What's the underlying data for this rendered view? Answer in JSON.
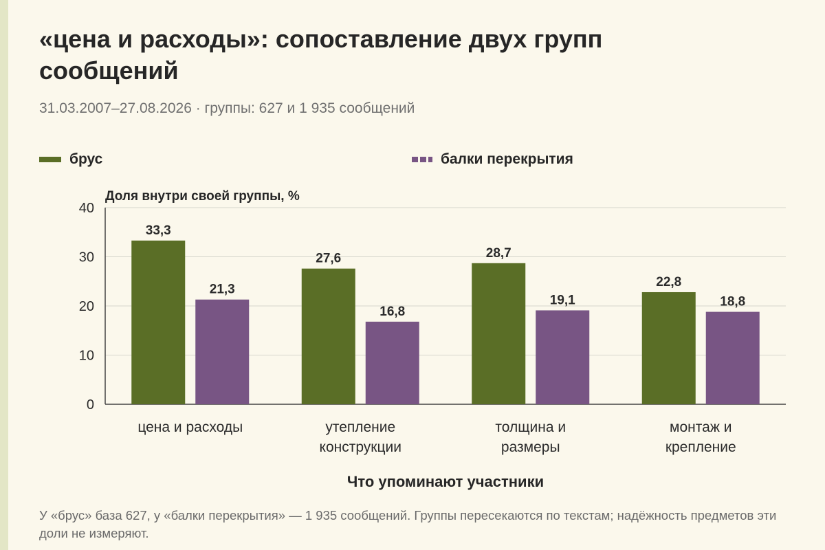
{
  "title": "«цена и расходы»: сопоставление двух групп сообщений",
  "subtitle": "31.03.2007–27.08.2026 · группы: 627 и 1 935 сообщений",
  "note": "У «брус» база 627, у «балки перекрытия» — 1 935 сообщений. Группы пересекаются по текстам; надёжность предметов эти доли не измеряют.",
  "colors": {
    "brus": "#5a6e26",
    "balki": "#785584",
    "background": "#fbf8ec"
  },
  "chart_data": {
    "type": "bar",
    "ylabel": "Доля внутри своей группы, %",
    "xlabel": "Что упоминают участники",
    "ylim": [
      0,
      40
    ],
    "yticks": [
      "0",
      "10",
      "20",
      "30",
      "40"
    ],
    "grid": true,
    "legend_position": "top",
    "categories": [
      [
        "цена и расходы"
      ],
      [
        "утепление",
        "конструкции"
      ],
      [
        "толщина и",
        "размеры"
      ],
      [
        "монтаж и",
        "крепление"
      ]
    ],
    "series": [
      {
        "name": "брус",
        "color": "#5a6e26",
        "values": [
          33.3,
          27.6,
          28.7,
          22.8
        ],
        "labels": [
          "33,3",
          "27,6",
          "28,7",
          "22,8"
        ]
      },
      {
        "name": "балки перекрытия",
        "color": "#785584",
        "values": [
          21.3,
          16.8,
          19.1,
          18.8
        ],
        "labels": [
          "21,3",
          "16,8",
          "19,1",
          "18,8"
        ]
      }
    ]
  }
}
